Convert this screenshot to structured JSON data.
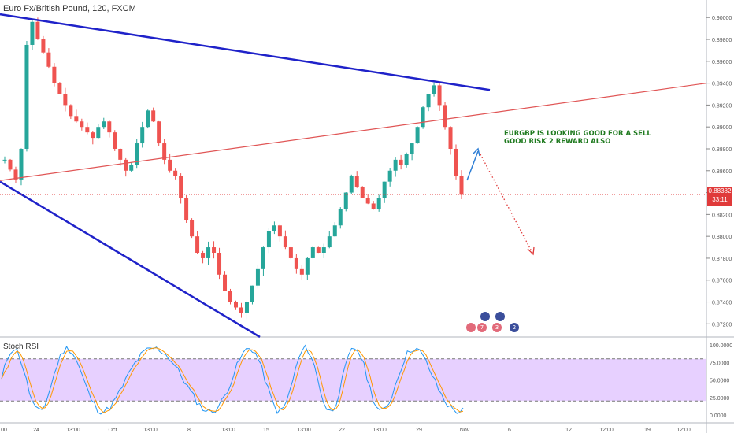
{
  "header": {
    "title": "Euro Fx/British Pound, 120, FXCM"
  },
  "indicator": {
    "title": "Stoch RSI"
  },
  "annotation": {
    "line1": "EURGBP IS LOOKING GOOD FOR A SELL",
    "line2": "GOOD RISK 2 REWARD ALSO"
  },
  "price_tag": {
    "price": "0.88382",
    "countdown": "33:11"
  },
  "events": {
    "badge_a": "7",
    "badge_b": "3",
    "badge_c": "2"
  },
  "colors": {
    "up": "#26a69a",
    "down": "#ef5350",
    "trend_blue": "#1f22c9",
    "trend_red": "#e05555",
    "stoch_k": "#2196f3",
    "stoch_d": "#ff9800",
    "band_fill": "#e3c8ff"
  },
  "chart_data": {
    "type": "candlestick",
    "main_axis_ticks": [
      "0.90000",
      "0.89800",
      "0.89600",
      "0.89400",
      "0.89200",
      "0.89000",
      "0.88800",
      "0.88600",
      "0.88400",
      "0.88200",
      "0.88000",
      "0.87800",
      "0.87600",
      "0.87400",
      "0.87200"
    ],
    "ylim": [
      0.8708,
      0.9016
    ],
    "indicator_axis_ticks": [
      "100.0000",
      "75.0000",
      "50.0000",
      "25.0000",
      "0.0000"
    ],
    "indicator_bands": [
      80,
      20
    ],
    "x_tick_labels": [
      "24",
      "13:00",
      "Oct",
      "13:00",
      "8",
      "13:00",
      "15",
      "13:00",
      "22",
      "13:00",
      "29",
      "Nov",
      "6",
      "12",
      "12:00",
      "19",
      "12:00"
    ],
    "close_series": [
      0.887,
      0.8861,
      0.8852,
      0.888,
      0.8975,
      0.8996,
      0.898,
      0.8968,
      0.8955,
      0.894,
      0.893,
      0.892,
      0.891,
      0.8905,
      0.89,
      0.8895,
      0.889,
      0.89,
      0.8905,
      0.8895,
      0.888,
      0.887,
      0.886,
      0.8865,
      0.8885,
      0.89,
      0.8915,
      0.8905,
      0.8885,
      0.887,
      0.886,
      0.8855,
      0.8835,
      0.8815,
      0.88,
      0.8785,
      0.878,
      0.879,
      0.8785,
      0.8765,
      0.875,
      0.874,
      0.8735,
      0.873,
      0.874,
      0.8755,
      0.877,
      0.879,
      0.8805,
      0.881,
      0.88,
      0.879,
      0.878,
      0.877,
      0.8765,
      0.878,
      0.879,
      0.8785,
      0.879,
      0.88,
      0.881,
      0.8825,
      0.884,
      0.8855,
      0.8845,
      0.8835,
      0.883,
      0.8825,
      0.8835,
      0.885,
      0.886,
      0.887,
      0.8865,
      0.8875,
      0.8885,
      0.89,
      0.8918,
      0.893,
      0.8938,
      0.892,
      0.89,
      0.888,
      0.8855,
      0.8838
    ],
    "trendlines": [
      {
        "color": "blue",
        "from": {
          "x": "start",
          "y": 0.9003
        },
        "to": {
          "x": "Nov",
          "y": 0.8939
        }
      },
      {
        "color": "blue",
        "from": {
          "x": "start",
          "y": 0.883
        },
        "to": {
          "x": "8",
          "y": 0.8706
        }
      },
      {
        "color": "red",
        "from": {
          "x": "start",
          "y": 0.8851
        },
        "to": {
          "x": "end",
          "y": 0.894
        }
      }
    ],
    "current_price_line": 0.88382
  }
}
